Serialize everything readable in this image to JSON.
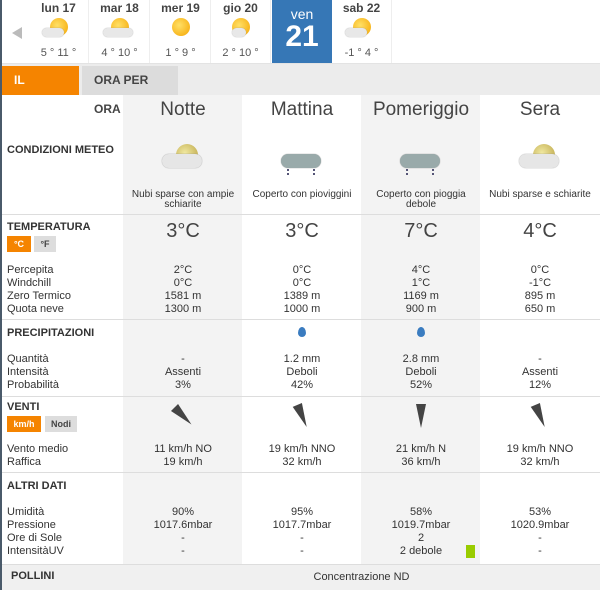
{
  "days": [
    {
      "name": "lun 17",
      "temps": "5 ° 11 °",
      "icon": "sun-cloud-icon"
    },
    {
      "name": "mar 18",
      "temps": "4 ° 10 °",
      "icon": "sun-clouds-icon"
    },
    {
      "name": "mer 19",
      "temps": "1 ° 9 °",
      "icon": "sun-icon"
    },
    {
      "name": "gio 20",
      "temps": "2 ° 10 °",
      "icon": "sun-cloud-icon"
    },
    {
      "name": "ven",
      "num": "21",
      "selected": true
    },
    {
      "name": "sab 22",
      "temps": "-1 ° 4 °",
      "icon": "sun-cloud-icon"
    }
  ],
  "tabs": {
    "day": "IL GIORNO",
    "hourly": "ORA PER ORA"
  },
  "accent": "#f58400",
  "selected_color": "#3677b6",
  "periods": [
    {
      "name": "Notte",
      "desc": "Nubi sparse con ampie schiarite",
      "icon": "moon-cloud-icon",
      "temp": "3°C",
      "perc": "2°C",
      "wc": "0°C",
      "zero": "1581 m",
      "neve": "1300 m",
      "qty": "-",
      "int": "Assenti",
      "prob": "3%",
      "wind_dir_deg": 315,
      "vento": "11 km/h  NO",
      "raffica": "19 km/h",
      "umid": "90%",
      "press": "1017.6mbar",
      "sole": "-",
      "uv": "-"
    },
    {
      "name": "Mattina",
      "desc": "Coperto con pioviggini",
      "icon": "rain-cloud-icon",
      "temp": "3°C",
      "perc": "0°C",
      "wc": "0°C",
      "zero": "1389 m",
      "neve": "1000 m",
      "qty": "1.2 mm",
      "int": "Deboli",
      "prob": "42%",
      "wind_dir_deg": 337,
      "vento": "19 km/h NNO",
      "raffica": "32 km/h",
      "umid": "95%",
      "press": "1017.7mbar",
      "sole": "-",
      "uv": "-"
    },
    {
      "name": "Pomeriggio",
      "desc": "Coperto con pioggia debole",
      "icon": "rain-cloud-icon",
      "temp": "7°C",
      "perc": "4°C",
      "wc": "1°C",
      "zero": "1169 m",
      "neve": "900 m",
      "qty": "2.8 mm",
      "int": "Deboli",
      "prob": "52%",
      "wind_dir_deg": 0,
      "vento": "21 km/h N",
      "raffica": "36 km/h",
      "umid": "58%",
      "press": "1019.7mbar",
      "sole": "2",
      "uv": "2 debole"
    },
    {
      "name": "Sera",
      "desc": "Nubi sparse e schiarite",
      "icon": "moon-cloud-icon",
      "temp": "4°C",
      "perc": "0°C",
      "wc": "-1°C",
      "zero": "895 m",
      "neve": "650 m",
      "qty": "-",
      "int": "Assenti",
      "prob": "12%",
      "wind_dir_deg": 337,
      "vento": "19 km/h NNO",
      "raffica": "32 km/h",
      "umid": "53%",
      "press": "1020.9mbar",
      "sole": "-",
      "uv": "-"
    }
  ],
  "labels": {
    "cond": "CONDIZIONI METEO",
    "temp": "TEMPERATURA",
    "c": "°C",
    "f": "°F",
    "perc": "Percepita",
    "wc": "Windchill",
    "zero": "Zero Termico",
    "neve": "Quota neve",
    "prec": "PRECIPITAZIONI",
    "qty": "Quantità",
    "int": "Intensità",
    "prob": "Probabilità",
    "venti": "VENTI",
    "kmh": "km/h",
    "nodi": "Nodi",
    "vento": "Vento medio",
    "raffica": "Raffica",
    "altri": "ALTRI DATI",
    "umid": "Umidità",
    "press": "Pressione",
    "sole": "Ore di Sole",
    "uv": "IntensitàUV",
    "pollini": "POLLINI"
  },
  "pollini_value": "Concentrazione ND",
  "uv_color": "#99cc00"
}
